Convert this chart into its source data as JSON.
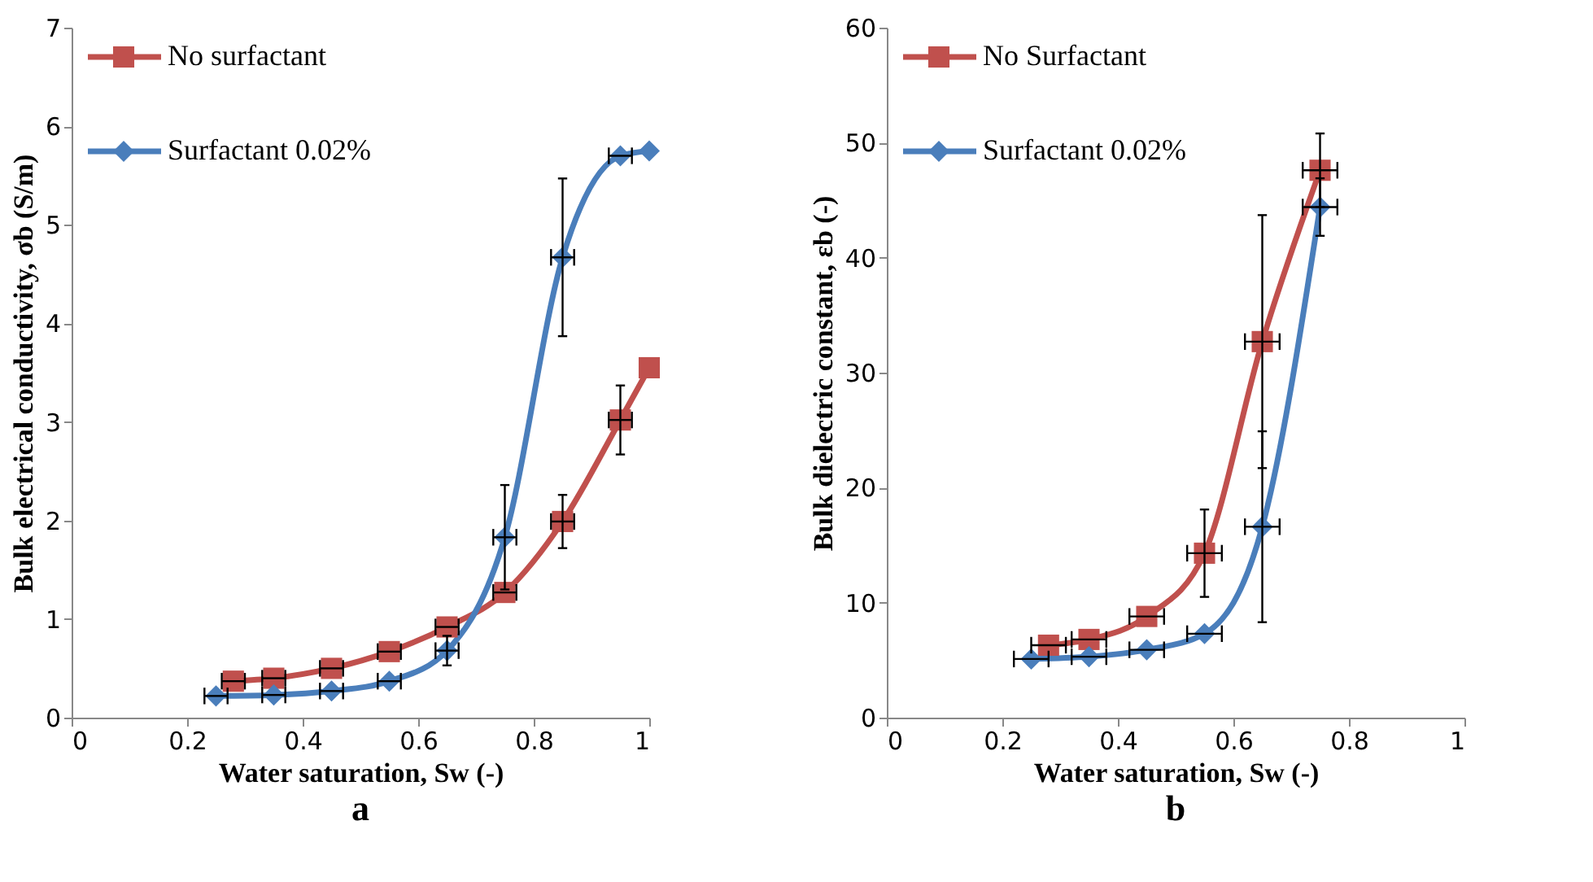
{
  "chart_data": [
    {
      "type": "line",
      "xlabel": "Water saturation, Sw (-)",
      "ylabel": "Bulk electrical conductivity, σb (S/m)",
      "annotations": [
        "a"
      ],
      "xlim": [
        0,
        1
      ],
      "xticks": [
        0,
        0.2,
        0.4,
        0.6,
        0.8,
        1
      ],
      "ylim": [
        0,
        7
      ],
      "yticks": [
        0,
        1,
        2,
        3,
        4,
        5,
        6,
        7
      ],
      "grid": false,
      "legend": "top left",
      "line_style": "solid",
      "series": [
        {
          "name": "No surfactant",
          "color": "#c0504d",
          "marker": "square",
          "x": [
            0.28,
            0.35,
            0.45,
            0.55,
            0.65,
            0.75,
            0.85,
            0.95,
            1.0
          ],
          "values": [
            0.37,
            0.4,
            0.5,
            0.67,
            0.92,
            1.27,
            1.99,
            3.02,
            3.55
          ],
          "errors": [
            null,
            null,
            null,
            null,
            null,
            null,
            0.27,
            0.35,
            null
          ],
          "xerrors": [
            0.02,
            0.02,
            0.02,
            0.02,
            0.02,
            0.02,
            0.02,
            0.02,
            null
          ]
        },
        {
          "name": "Surfactant 0.02%",
          "color": "#4a7ebb",
          "marker": "diamond",
          "x": [
            0.25,
            0.35,
            0.45,
            0.55,
            0.65,
            0.75,
            0.85,
            0.95,
            1.0
          ],
          "values": [
            0.22,
            0.23,
            0.27,
            0.37,
            0.68,
            1.83,
            4.67,
            5.7,
            5.75
          ],
          "errors": [
            null,
            null,
            null,
            null,
            0.15,
            0.53,
            0.8,
            null,
            null
          ],
          "xerrors": [
            0.02,
            0.02,
            0.02,
            0.02,
            0.02,
            0.02,
            0.02,
            0.02,
            null
          ]
        }
      ]
    },
    {
      "type": "line",
      "xlabel": "Water saturation, Sw (-)",
      "ylabel": "Bulk dielectric constant, εb (-)",
      "annotations": [
        "b"
      ],
      "xlim": [
        0,
        1
      ],
      "xticks": [
        0,
        0.2,
        0.4,
        0.6,
        0.8,
        1
      ],
      "ylim": [
        0,
        60
      ],
      "yticks": [
        0,
        10,
        20,
        30,
        40,
        50,
        60
      ],
      "grid": false,
      "legend": "top left",
      "line_style": "solid",
      "series": [
        {
          "name": "No Surfactant",
          "color": "#c0504d",
          "marker": "square",
          "x": [
            0.28,
            0.35,
            0.45,
            0.55,
            0.65,
            0.75
          ],
          "values": [
            6.3,
            6.8,
            8.8,
            14.3,
            32.7,
            47.6
          ],
          "errors": [
            null,
            null,
            null,
            3.8,
            11,
            3.2
          ],
          "xerrors": [
            0.03,
            0.03,
            0.03,
            0.03,
            0.03,
            0.03
          ]
        },
        {
          "name": "Surfactant 0.02%",
          "color": "#4a7ebb",
          "marker": "diamond",
          "x": [
            0.25,
            0.35,
            0.45,
            0.55,
            0.65,
            0.75
          ],
          "values": [
            5.1,
            5.3,
            5.9,
            7.3,
            16.6,
            44.4
          ],
          "errors": [
            null,
            null,
            null,
            null,
            8.3,
            2.5
          ],
          "xerrors": [
            0.03,
            0.03,
            0.03,
            0.03,
            0.03,
            0.03
          ]
        }
      ]
    }
  ]
}
